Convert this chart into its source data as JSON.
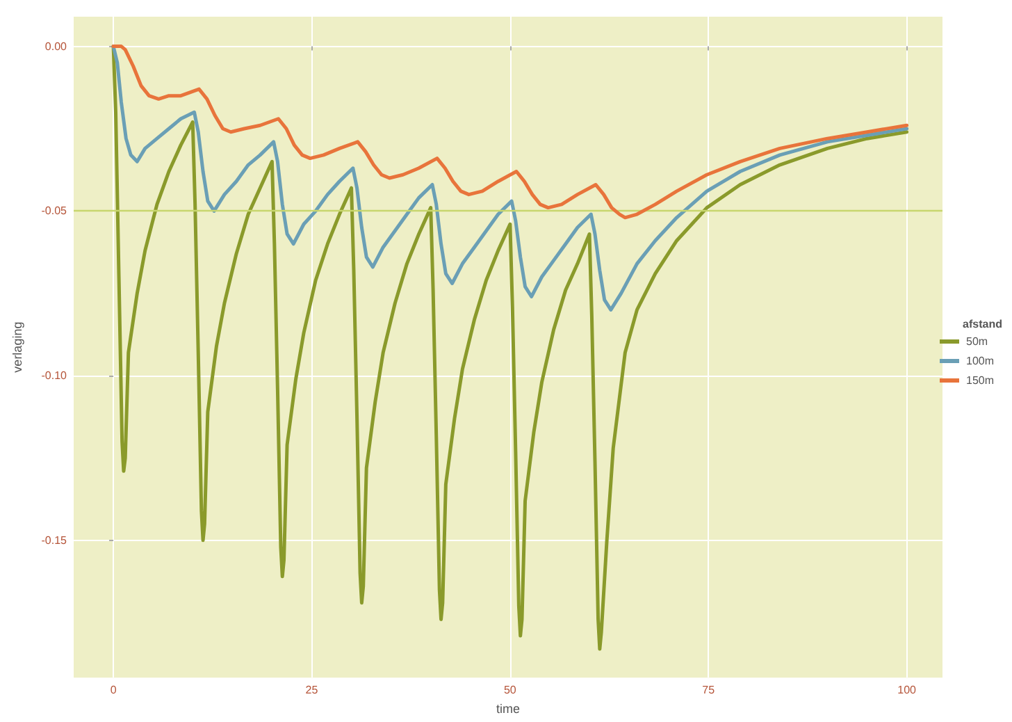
{
  "chart_data": {
    "type": "line",
    "xlabel": "time",
    "ylabel": "verlaging",
    "legend_title": "afstand",
    "legend": "right",
    "grid": true,
    "marker": "none",
    "line_style": "solid",
    "xlim": [
      -5,
      104.5
    ],
    "xticks": [
      0,
      25,
      50,
      75,
      100
    ],
    "ylim": [
      -0.1917,
      0.009
    ],
    "yticks": [
      {
        "value": 0,
        "label": "0.00"
      },
      {
        "value": -0.05,
        "label": "-0.05"
      },
      {
        "value": -0.1,
        "label": "-0.10"
      },
      {
        "value": -0.15,
        "label": "-0.15"
      }
    ],
    "ref_lines": [
      {
        "axis": "y",
        "value": -0.05,
        "color": "#c8d66e"
      }
    ],
    "series": [
      {
        "name": "50m",
        "color": "#8a9a2b",
        "x": [
          0,
          0.3,
          0.7,
          1.1,
          1.3,
          1.5,
          1.9,
          3,
          4,
          5.5,
          7,
          8.5,
          10,
          10.3,
          10.7,
          11.1,
          11.3,
          11.5,
          11.9,
          13,
          14,
          15.5,
          17,
          18.5,
          20,
          20.3,
          20.7,
          21.1,
          21.3,
          21.5,
          21.9,
          23,
          24,
          25.5,
          27,
          28.5,
          30,
          30.3,
          30.7,
          31.1,
          31.3,
          31.5,
          31.9,
          33,
          34,
          35.5,
          37,
          38.5,
          40,
          40.3,
          40.7,
          41.1,
          41.3,
          41.5,
          41.9,
          43,
          44,
          45.5,
          47,
          48.5,
          50,
          50.3,
          50.7,
          51.1,
          51.3,
          51.5,
          51.9,
          53,
          54,
          55.5,
          57,
          58.5,
          60,
          60.3,
          60.7,
          61.1,
          61.3,
          61.5,
          62.2,
          63,
          64.5,
          66,
          68.3,
          71,
          74.8,
          79,
          84,
          90,
          95,
          100
        ],
        "values": [
          0,
          -0.02,
          -0.07,
          -0.12,
          -0.129,
          -0.125,
          -0.093,
          -0.075,
          -0.062,
          -0.048,
          -0.038,
          -0.03,
          -0.023,
          -0.048,
          -0.093,
          -0.141,
          -0.15,
          -0.145,
          -0.111,
          -0.091,
          -0.078,
          -0.063,
          -0.051,
          -0.043,
          -0.035,
          -0.06,
          -0.104,
          -0.152,
          -0.161,
          -0.156,
          -0.121,
          -0.101,
          -0.087,
          -0.071,
          -0.06,
          -0.051,
          -0.043,
          -0.068,
          -0.112,
          -0.16,
          -0.169,
          -0.164,
          -0.128,
          -0.108,
          -0.093,
          -0.078,
          -0.066,
          -0.057,
          -0.049,
          -0.074,
          -0.118,
          -0.165,
          -0.174,
          -0.169,
          -0.133,
          -0.113,
          -0.098,
          -0.083,
          -0.071,
          -0.062,
          -0.054,
          -0.079,
          -0.123,
          -0.17,
          -0.179,
          -0.174,
          -0.138,
          -0.117,
          -0.102,
          -0.086,
          -0.074,
          -0.066,
          -0.057,
          -0.082,
          -0.126,
          -0.174,
          -0.183,
          -0.178,
          -0.15,
          -0.122,
          -0.093,
          -0.08,
          -0.069,
          -0.059,
          -0.049,
          -0.042,
          -0.036,
          -0.031,
          -0.028,
          -0.026
        ]
      },
      {
        "name": "100m",
        "color": "#6a9fb5",
        "x": [
          0,
          0.5,
          1,
          1.6,
          2.2,
          3,
          4,
          5.5,
          7,
          8.5,
          10.2,
          10.7,
          11.3,
          11.9,
          12.7,
          14,
          15.5,
          17,
          18.5,
          20.2,
          20.7,
          21.3,
          21.9,
          22.7,
          24,
          25.5,
          27,
          28.5,
          30.2,
          30.7,
          31.3,
          31.9,
          32.7,
          34,
          35.5,
          37,
          38.5,
          40.2,
          40.7,
          41.3,
          41.9,
          42.7,
          44,
          45.5,
          47,
          48.5,
          50.2,
          50.7,
          51.3,
          51.9,
          52.7,
          54,
          55.5,
          57,
          58.5,
          60.2,
          60.7,
          61.3,
          61.9,
          62.7,
          64,
          66,
          68.3,
          71,
          74.8,
          79,
          84,
          90,
          95,
          100
        ],
        "values": [
          0,
          -0.005,
          -0.017,
          -0.028,
          -0.033,
          -0.035,
          -0.031,
          -0.028,
          -0.025,
          -0.022,
          -0.02,
          -0.026,
          -0.038,
          -0.047,
          -0.05,
          -0.045,
          -0.041,
          -0.036,
          -0.033,
          -0.029,
          -0.035,
          -0.048,
          -0.057,
          -0.06,
          -0.054,
          -0.05,
          -0.045,
          -0.041,
          -0.037,
          -0.043,
          -0.055,
          -0.064,
          -0.067,
          -0.061,
          -0.056,
          -0.051,
          -0.046,
          -0.042,
          -0.048,
          -0.06,
          -0.069,
          -0.072,
          -0.066,
          -0.061,
          -0.056,
          -0.051,
          -0.047,
          -0.053,
          -0.064,
          -0.073,
          -0.076,
          -0.07,
          -0.065,
          -0.06,
          -0.055,
          -0.051,
          -0.057,
          -0.068,
          -0.077,
          -0.08,
          -0.075,
          -0.066,
          -0.059,
          -0.052,
          -0.044,
          -0.038,
          -0.033,
          -0.029,
          -0.027,
          -0.025
        ]
      },
      {
        "name": "150m",
        "color": "#e8743b",
        "x": [
          0,
          1,
          1.5,
          2.5,
          3.5,
          4.5,
          5.7,
          7,
          8.5,
          10.8,
          11.8,
          12.8,
          13.8,
          14.8,
          16.5,
          18.5,
          20.8,
          21.8,
          22.8,
          23.8,
          24.8,
          26.5,
          28.5,
          30.8,
          31.8,
          32.8,
          33.8,
          34.8,
          36.5,
          38.5,
          40.8,
          41.8,
          42.8,
          43.8,
          44.8,
          46.5,
          48.5,
          50.8,
          51.8,
          52.8,
          53.8,
          54.8,
          56.5,
          58.5,
          60.8,
          61.8,
          62.8,
          63.8,
          64.5,
          66,
          68.3,
          71,
          74.8,
          79,
          84,
          90,
          95,
          100
        ],
        "values": [
          0,
          0,
          -0.001,
          -0.006,
          -0.012,
          -0.015,
          -0.016,
          -0.015,
          -0.015,
          -0.013,
          -0.016,
          -0.021,
          -0.025,
          -0.026,
          -0.025,
          -0.024,
          -0.022,
          -0.025,
          -0.03,
          -0.033,
          -0.034,
          -0.033,
          -0.031,
          -0.029,
          -0.032,
          -0.036,
          -0.039,
          -0.04,
          -0.039,
          -0.037,
          -0.034,
          -0.037,
          -0.041,
          -0.044,
          -0.045,
          -0.044,
          -0.041,
          -0.038,
          -0.041,
          -0.045,
          -0.048,
          -0.049,
          -0.048,
          -0.045,
          -0.042,
          -0.045,
          -0.049,
          -0.051,
          -0.052,
          -0.051,
          -0.048,
          -0.044,
          -0.039,
          -0.035,
          -0.031,
          -0.028,
          -0.026,
          -0.024
        ]
      }
    ]
  }
}
